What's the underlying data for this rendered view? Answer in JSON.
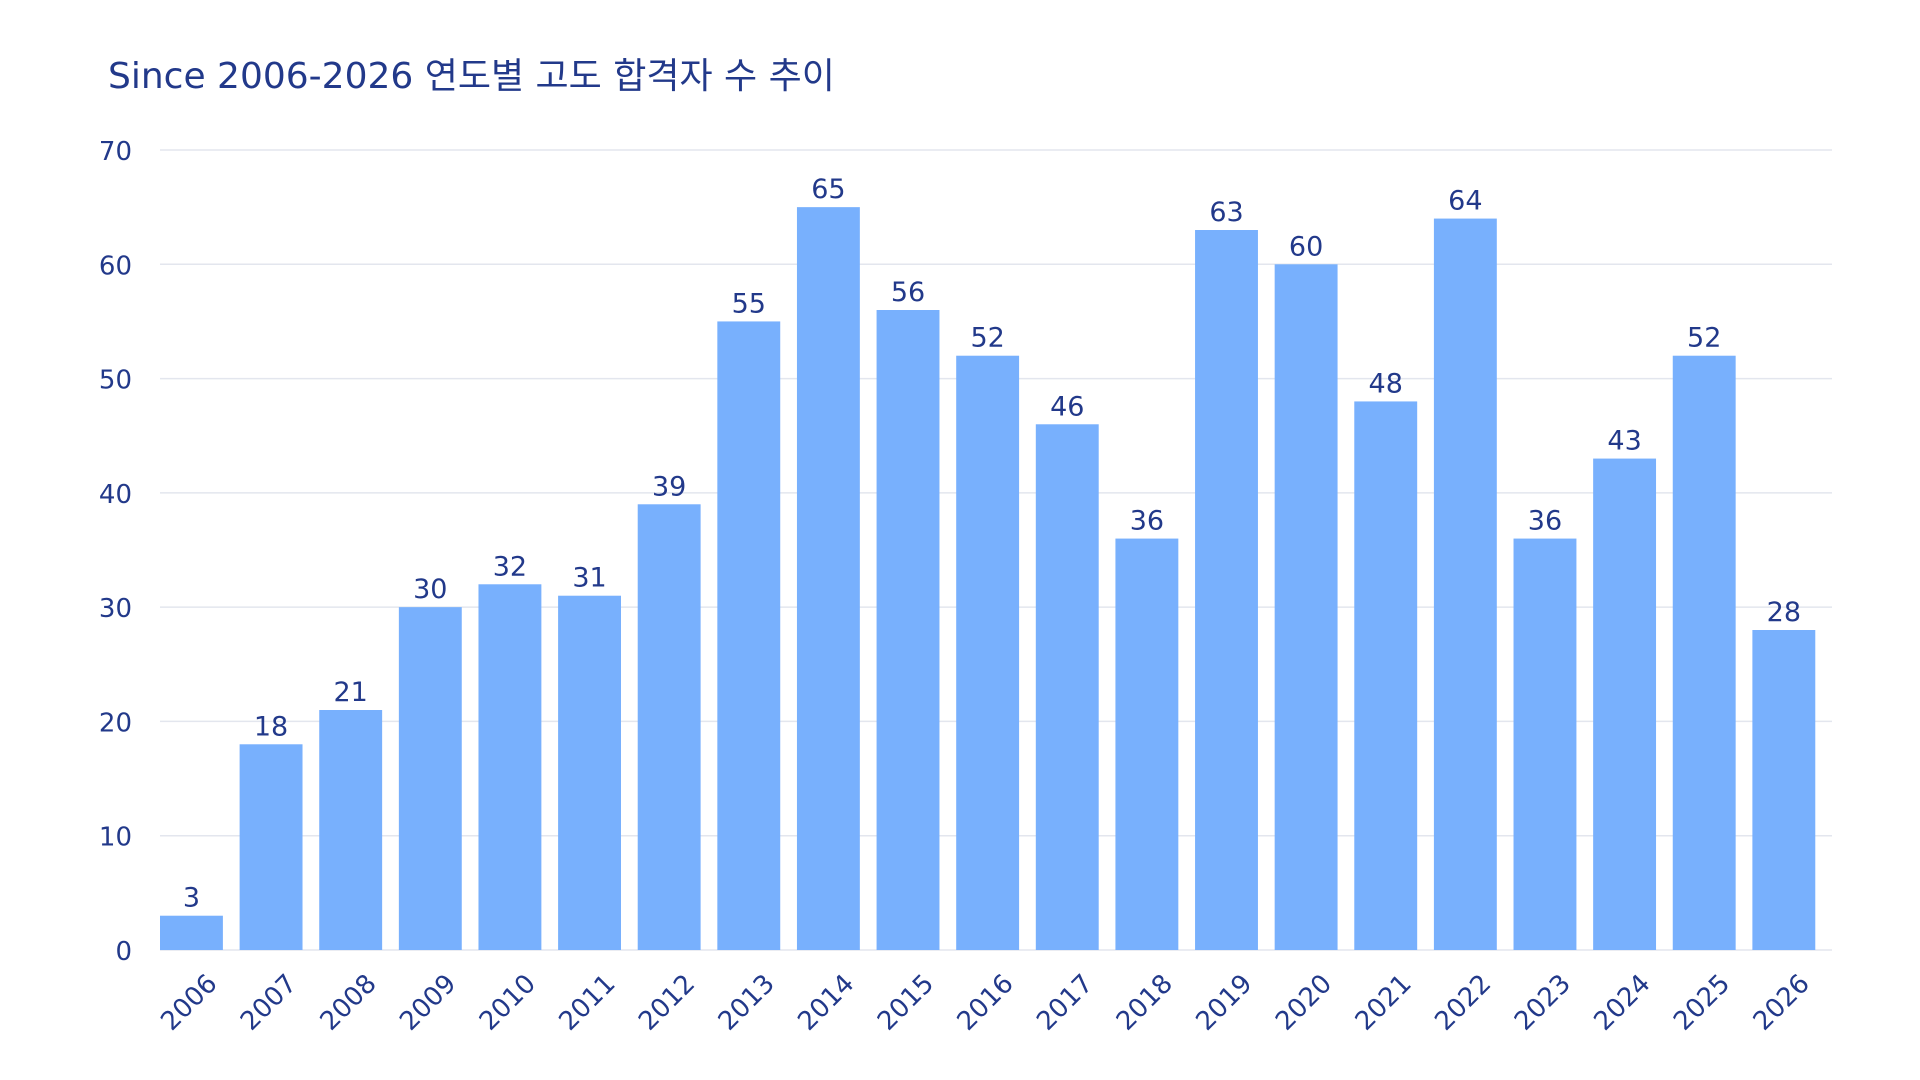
{
  "chart_data": {
    "type": "bar",
    "title": "Since 2006-2026 연도별 고도 합격자 수 추이",
    "xlabel": "",
    "ylabel": "",
    "categories": [
      "2006",
      "2007",
      "2008",
      "2009",
      "2010",
      "2011",
      "2012",
      "2013",
      "2014",
      "2015",
      "2016",
      "2017",
      "2018",
      "2019",
      "2020",
      "2021",
      "2022",
      "2023",
      "2024",
      "2025",
      "2026"
    ],
    "values": [
      3,
      18,
      21,
      30,
      32,
      31,
      39,
      55,
      65,
      56,
      52,
      46,
      36,
      63,
      60,
      48,
      64,
      36,
      43,
      52,
      28
    ],
    "ylim": [
      0,
      70
    ],
    "yticks": [
      0,
      10,
      20,
      30,
      40,
      50,
      60,
      70
    ],
    "grid": true,
    "legend": "none",
    "colors": {
      "bar": "#78b0fd",
      "text": "#22398a",
      "grid": "#e3e6ee"
    }
  }
}
